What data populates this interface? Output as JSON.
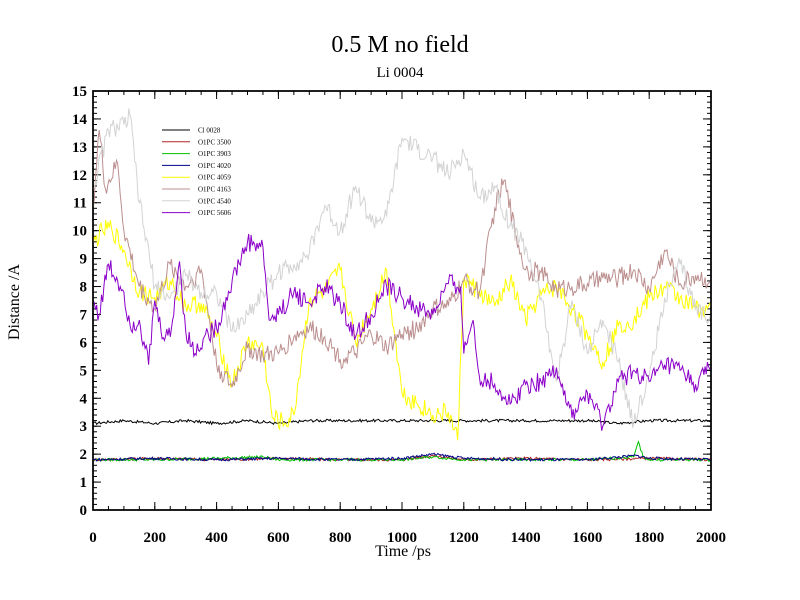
{
  "chart_data": {
    "type": "line",
    "title": "0.5 M no field",
    "subtitle": "Li 0004",
    "xlabel": "Time /ps",
    "ylabel": "Distance /A",
    "xlim": [
      0,
      2000
    ],
    "ylim": [
      0,
      15
    ],
    "x_ticks": [
      0,
      200,
      400,
      600,
      800,
      1000,
      1200,
      1400,
      1600,
      1800,
      2000
    ],
    "y_ticks": [
      0,
      1,
      2,
      3,
      4,
      5,
      6,
      7,
      8,
      9,
      10,
      11,
      12,
      13,
      14,
      15
    ],
    "grid": false,
    "legend_position": "top-left",
    "series": [
      {
        "name": "Cl 0028",
        "color": "#000000",
        "x": [
          0,
          100,
          200,
          300,
          400,
          500,
          600,
          700,
          800,
          900,
          1000,
          1100,
          1200,
          1300,
          1400,
          1500,
          1600,
          1700,
          1800,
          1900,
          2000
        ],
        "y": [
          3.1,
          3.2,
          3.1,
          3.2,
          3.1,
          3.2,
          3.1,
          3.2,
          3.2,
          3.2,
          3.2,
          3.2,
          3.2,
          3.2,
          3.2,
          3.2,
          3.2,
          3.1,
          3.2,
          3.2,
          3.2
        ]
      },
      {
        "name": "O1PC 3500",
        "color": "#b22222",
        "x": [
          0,
          200,
          400,
          600,
          800,
          1000,
          1100,
          1200,
          1400,
          1600,
          1800,
          2000
        ],
        "y": [
          1.8,
          1.85,
          1.8,
          1.85,
          1.8,
          1.8,
          1.95,
          1.8,
          1.85,
          1.8,
          1.85,
          1.8
        ]
      },
      {
        "name": "O1PC 3903",
        "color": "#00c000",
        "x": [
          0,
          200,
          400,
          550,
          600,
          800,
          1000,
          1100,
          1200,
          1400,
          1600,
          1750,
          1765,
          1780,
          1800,
          2000
        ],
        "y": [
          1.8,
          1.8,
          1.85,
          1.9,
          1.8,
          1.8,
          1.8,
          1.9,
          1.8,
          1.8,
          1.8,
          1.9,
          2.45,
          1.9,
          1.8,
          1.8
        ]
      },
      {
        "name": "O1PC 4020",
        "color": "#00008b",
        "x": [
          0,
          200,
          400,
          600,
          800,
          1000,
          1100,
          1200,
          1400,
          1600,
          1760,
          1800,
          2000
        ],
        "y": [
          1.8,
          1.85,
          1.8,
          1.85,
          1.8,
          1.85,
          2.0,
          1.85,
          1.8,
          1.8,
          1.95,
          1.85,
          1.8
        ]
      },
      {
        "name": "O1PC 4059",
        "color": "#ffff00",
        "x": [
          0,
          30,
          60,
          100,
          150,
          200,
          250,
          300,
          350,
          400,
          450,
          500,
          550,
          580,
          620,
          650,
          700,
          750,
          800,
          850,
          900,
          950,
          1000,
          1050,
          1100,
          1150,
          1180,
          1200,
          1250,
          1300,
          1350,
          1400,
          1450,
          1500,
          1550,
          1600,
          1650,
          1700,
          1750,
          1800,
          1850,
          1900,
          1950,
          2000
        ],
        "y": [
          9.5,
          10.0,
          10.1,
          9.3,
          7.8,
          7.6,
          8.2,
          7.3,
          7.4,
          6.2,
          4.5,
          6.0,
          5.8,
          3.3,
          3.1,
          3.4,
          7.5,
          7.8,
          8.6,
          6.0,
          7.2,
          8.6,
          4.2,
          3.8,
          3.4,
          3.5,
          2.5,
          8.3,
          7.8,
          7.3,
          8.2,
          6.8,
          7.7,
          8.0,
          7.2,
          6.3,
          5.3,
          6.6,
          6.8,
          7.6,
          8.0,
          7.6,
          7.2,
          7.3
        ]
      },
      {
        "name": "O1PC 4163",
        "color": "#bc8f8f",
        "x": [
          0,
          20,
          40,
          80,
          100,
          150,
          200,
          250,
          300,
          350,
          400,
          450,
          500,
          550,
          600,
          650,
          700,
          750,
          800,
          850,
          900,
          950,
          1000,
          1050,
          1100,
          1150,
          1200,
          1250,
          1300,
          1330,
          1370,
          1400,
          1450,
          1500,
          1550,
          1600,
          1650,
          1700,
          1750,
          1800,
          1850,
          1900,
          1950,
          2000
        ],
        "y": [
          10.8,
          13.6,
          11.5,
          12.4,
          10.0,
          8.0,
          7.2,
          8.8,
          8.0,
          8.6,
          5.2,
          4.4,
          5.8,
          5.5,
          5.6,
          6.2,
          6.5,
          6.2,
          5.4,
          5.6,
          6.3,
          5.8,
          6.3,
          6.5,
          7.2,
          7.3,
          8.2,
          7.8,
          10.8,
          11.8,
          9.8,
          8.6,
          8.5,
          7.9,
          8.0,
          8.1,
          8.3,
          8.3,
          8.6,
          7.9,
          9.3,
          8.1,
          8.4,
          8.2
        ]
      },
      {
        "name": "O1PC 4540",
        "color": "#d3d3d3",
        "x": [
          0,
          50,
          100,
          120,
          150,
          200,
          250,
          300,
          350,
          400,
          450,
          500,
          550,
          600,
          650,
          700,
          750,
          800,
          850,
          900,
          950,
          1000,
          1050,
          1100,
          1150,
          1200,
          1250,
          1300,
          1350,
          1400,
          1450,
          1500,
          1550,
          1600,
          1650,
          1700,
          1750,
          1800,
          1850,
          1900,
          1950,
          2000
        ],
        "y": [
          11.5,
          13.6,
          13.8,
          14.1,
          11.0,
          8.0,
          7.6,
          8.4,
          7.8,
          7.8,
          6.4,
          7.0,
          7.8,
          8.5,
          8.8,
          9.2,
          10.9,
          10.0,
          11.6,
          10.3,
          10.5,
          13.3,
          12.9,
          12.6,
          12.0,
          12.8,
          11.2,
          11.6,
          10.2,
          9.4,
          7.6,
          4.6,
          7.5,
          5.6,
          6.8,
          5.3,
          3.1,
          4.8,
          7.6,
          8.8,
          7.2,
          6.9
        ]
      },
      {
        "name": "O1PC 5606",
        "color": "#8b00c8",
        "x": [
          0,
          20,
          50,
          80,
          100,
          120,
          150,
          180,
          200,
          220,
          250,
          280,
          300,
          330,
          360,
          400,
          450,
          500,
          550,
          570,
          600,
          650,
          700,
          750,
          800,
          850,
          900,
          950,
          1000,
          1050,
          1100,
          1150,
          1190,
          1200,
          1230,
          1250,
          1300,
          1350,
          1400,
          1450,
          1500,
          1550,
          1600,
          1650,
          1700,
          1750,
          1800,
          1850,
          1900,
          1950,
          2000
        ],
        "y": [
          7.5,
          7.0,
          8.8,
          8.2,
          7.8,
          6.6,
          6.8,
          5.2,
          7.5,
          6.4,
          6.2,
          8.9,
          6.4,
          5.6,
          6.2,
          6.5,
          8.2,
          9.6,
          9.4,
          6.8,
          7.0,
          7.8,
          7.4,
          8.0,
          7.4,
          6.2,
          7.0,
          8.0,
          7.6,
          7.2,
          7.0,
          8.1,
          8.0,
          5.6,
          6.8,
          4.8,
          4.5,
          3.8,
          4.5,
          4.6,
          5.1,
          3.3,
          4.2,
          3.0,
          4.6,
          5.0,
          4.6,
          5.2,
          5.0,
          4.5,
          5.1
        ]
      }
    ]
  }
}
